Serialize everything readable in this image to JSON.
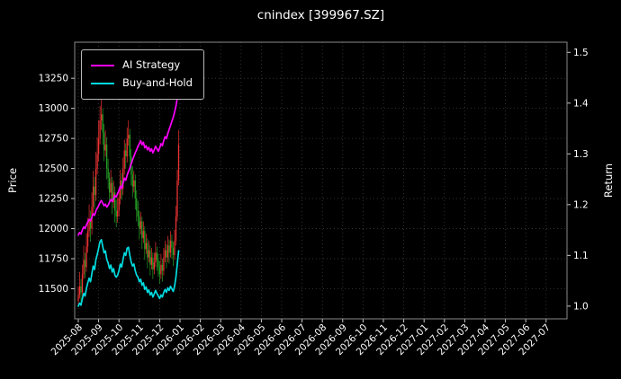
{
  "chart_data": {
    "type": "candlestick",
    "title": "cnindex [399967.SZ]",
    "background": "#000000",
    "text_color": "#ffffff",
    "grid": true,
    "grid_color": "#3c3c3c",
    "legend": {
      "position": "upper-left",
      "items": [
        {
          "label": "AI Strategy",
          "color": "#ff00ff"
        },
        {
          "label": "Buy-and-Hold",
          "color": "#00dce0"
        }
      ]
    },
    "x_axis": {
      "tick_labels": [
        "2025-08",
        "2025-09",
        "2025-10",
        "2025-11",
        "2025-12",
        "2026-01",
        "2026-02",
        "2026-03",
        "2026-04",
        "2026-05",
        "2026-06",
        "2026-07",
        "2026-08",
        "2026-09",
        "2026-10",
        "2026-11",
        "2026-12",
        "2027-01",
        "2027-02",
        "2027-03",
        "2027-04",
        "2027-05",
        "2027-06",
        "2027-07"
      ],
      "candles_per_month": 15
    },
    "y_left": {
      "label": "Price",
      "ticks": [
        11500,
        11750,
        12000,
        12250,
        12500,
        12750,
        13000,
        13250
      ],
      "range": [
        11250,
        13550
      ]
    },
    "y_right": {
      "label": "Return",
      "ticks": [
        1.0,
        1.1,
        1.2,
        1.3,
        1.4,
        1.5
      ],
      "range": [
        0.975,
        1.52
      ]
    },
    "candle_colors": {
      "up": "#ee3333",
      "down": "#26a326"
    },
    "ohlc": [
      [
        11400,
        11520,
        11350,
        11450
      ],
      [
        11450,
        11640,
        11420,
        11520
      ],
      [
        11520,
        11580,
        11380,
        11470
      ],
      [
        11470,
        11700,
        11430,
        11620
      ],
      [
        11620,
        11860,
        11580,
        11740
      ],
      [
        11740,
        11800,
        11590,
        11680
      ],
      [
        11680,
        11960,
        11640,
        11850
      ],
      [
        11850,
        12090,
        11800,
        11980
      ],
      [
        11980,
        12200,
        11930,
        12080
      ],
      [
        12080,
        12150,
        11890,
        12000
      ],
      [
        12000,
        12300,
        11950,
        12180
      ],
      [
        12180,
        12480,
        12130,
        12350
      ],
      [
        12350,
        12430,
        12160,
        12280
      ],
      [
        12280,
        12640,
        12230,
        12500
      ],
      [
        12500,
        12760,
        12450,
        12620
      ],
      [
        12620,
        12900,
        12560,
        12750
      ],
      [
        12750,
        13020,
        12700,
        12900
      ],
      [
        12900,
        13080,
        12820,
        12950
      ],
      [
        12950,
        13000,
        12700,
        12800
      ],
      [
        12800,
        12870,
        12560,
        12650
      ],
      [
        12650,
        12820,
        12600,
        12700
      ],
      [
        12700,
        12760,
        12410,
        12500
      ],
      [
        12500,
        12580,
        12330,
        12420
      ],
      [
        12420,
        12470,
        12200,
        12300
      ],
      [
        12300,
        12490,
        12250,
        12380
      ],
      [
        12380,
        12430,
        12120,
        12220
      ],
      [
        12220,
        12400,
        12170,
        12300
      ],
      [
        12300,
        12350,
        12050,
        12150
      ],
      [
        12150,
        12240,
        12010,
        12100
      ],
      [
        12100,
        12260,
        12050,
        12150
      ],
      [
        12150,
        12340,
        12100,
        12250
      ],
      [
        12250,
        12490,
        12200,
        12400
      ],
      [
        12400,
        12460,
        12240,
        12330
      ],
      [
        12330,
        12590,
        12280,
        12500
      ],
      [
        12500,
        12740,
        12450,
        12650
      ],
      [
        12650,
        12710,
        12500,
        12600
      ],
      [
        12600,
        12840,
        12550,
        12750
      ],
      [
        12750,
        12900,
        12690,
        12780
      ],
      [
        12780,
        12830,
        12510,
        12600
      ],
      [
        12600,
        12660,
        12360,
        12450
      ],
      [
        12450,
        12520,
        12260,
        12350
      ],
      [
        12350,
        12480,
        12300,
        12400
      ],
      [
        12400,
        12450,
        12160,
        12250
      ],
      [
        12250,
        12320,
        12060,
        12150
      ],
      [
        12150,
        12230,
        12020,
        12100
      ],
      [
        12100,
        12150,
        11910,
        12000
      ],
      [
        12000,
        12140,
        11950,
        12060
      ],
      [
        12060,
        12100,
        11830,
        11920
      ],
      [
        11920,
        12060,
        11880,
        11980
      ],
      [
        11980,
        12020,
        11740,
        11830
      ],
      [
        11830,
        11960,
        11790,
        11880
      ],
      [
        11880,
        11920,
        11670,
        11760
      ],
      [
        11760,
        11900,
        11720,
        11820
      ],
      [
        11820,
        11860,
        11610,
        11700
      ],
      [
        11700,
        11840,
        11660,
        11760
      ],
      [
        11760,
        11800,
        11580,
        11660
      ],
      [
        11660,
        11800,
        11620,
        11720
      ],
      [
        11720,
        11890,
        11680,
        11800
      ],
      [
        11800,
        11850,
        11650,
        11740
      ],
      [
        11740,
        11790,
        11600,
        11680
      ],
      [
        11680,
        11730,
        11540,
        11620
      ],
      [
        11620,
        11790,
        11580,
        11700
      ],
      [
        11700,
        11750,
        11560,
        11650
      ],
      [
        11650,
        11840,
        11610,
        11760
      ],
      [
        11760,
        11900,
        11720,
        11820
      ],
      [
        11820,
        11870,
        11670,
        11760
      ],
      [
        11760,
        11940,
        11720,
        11860
      ],
      [
        11860,
        11910,
        11710,
        11800
      ],
      [
        11800,
        11980,
        11760,
        11900
      ],
      [
        11900,
        11950,
        11750,
        11840
      ],
      [
        11840,
        11890,
        11690,
        11780
      ],
      [
        11780,
        11990,
        11740,
        11900
      ],
      [
        11900,
        12190,
        11860,
        12100
      ],
      [
        12100,
        12490,
        12060,
        12400
      ],
      [
        12400,
        12820,
        12360,
        12700
      ]
    ],
    "series": [
      {
        "name": "AI Strategy",
        "axis": "right",
        "color": "#ff00ff",
        "values": [
          1.14,
          1.145,
          1.142,
          1.15,
          1.156,
          1.153,
          1.16,
          1.166,
          1.171,
          1.168,
          1.175,
          1.182,
          1.179,
          1.188,
          1.193,
          1.198,
          1.204,
          1.208,
          1.203,
          1.198,
          1.201,
          1.195,
          1.199,
          1.205,
          1.21,
          1.206,
          1.212,
          1.218,
          1.215,
          1.222,
          1.228,
          1.236,
          1.232,
          1.242,
          1.252,
          1.248,
          1.258,
          1.265,
          1.272,
          1.28,
          1.288,
          1.295,
          1.302,
          1.308,
          1.315,
          1.32,
          1.326,
          1.318,
          1.323,
          1.312,
          1.316,
          1.308,
          1.313,
          1.305,
          1.31,
          1.302,
          1.308,
          1.315,
          1.31,
          1.305,
          1.312,
          1.32,
          1.316,
          1.326,
          1.334,
          1.33,
          1.34,
          1.348,
          1.356,
          1.364,
          1.372,
          1.382,
          1.394,
          1.41,
          1.428
        ]
      },
      {
        "name": "Buy-and-Hold",
        "axis": "right",
        "color": "#00dce0",
        "values": [
          1.0,
          1.006,
          1.002,
          1.015,
          1.025,
          1.02,
          1.035,
          1.046,
          1.055,
          1.048,
          1.064,
          1.079,
          1.072,
          1.092,
          1.102,
          1.114,
          1.127,
          1.131,
          1.118,
          1.105,
          1.109,
          1.092,
          1.085,
          1.074,
          1.081,
          1.067,
          1.074,
          1.061,
          1.057,
          1.061,
          1.07,
          1.083,
          1.077,
          1.092,
          1.105,
          1.1,
          1.114,
          1.116,
          1.1,
          1.087,
          1.079,
          1.083,
          1.07,
          1.061,
          1.057,
          1.048,
          1.053,
          1.041,
          1.046,
          1.033,
          1.038,
          1.027,
          1.032,
          1.022,
          1.027,
          1.018,
          1.024,
          1.031,
          1.025,
          1.02,
          1.015,
          1.022,
          1.018,
          1.027,
          1.033,
          1.027,
          1.036,
          1.031,
          1.039,
          1.034,
          1.029,
          1.039,
          1.057,
          1.083,
          1.109
        ]
      }
    ]
  }
}
